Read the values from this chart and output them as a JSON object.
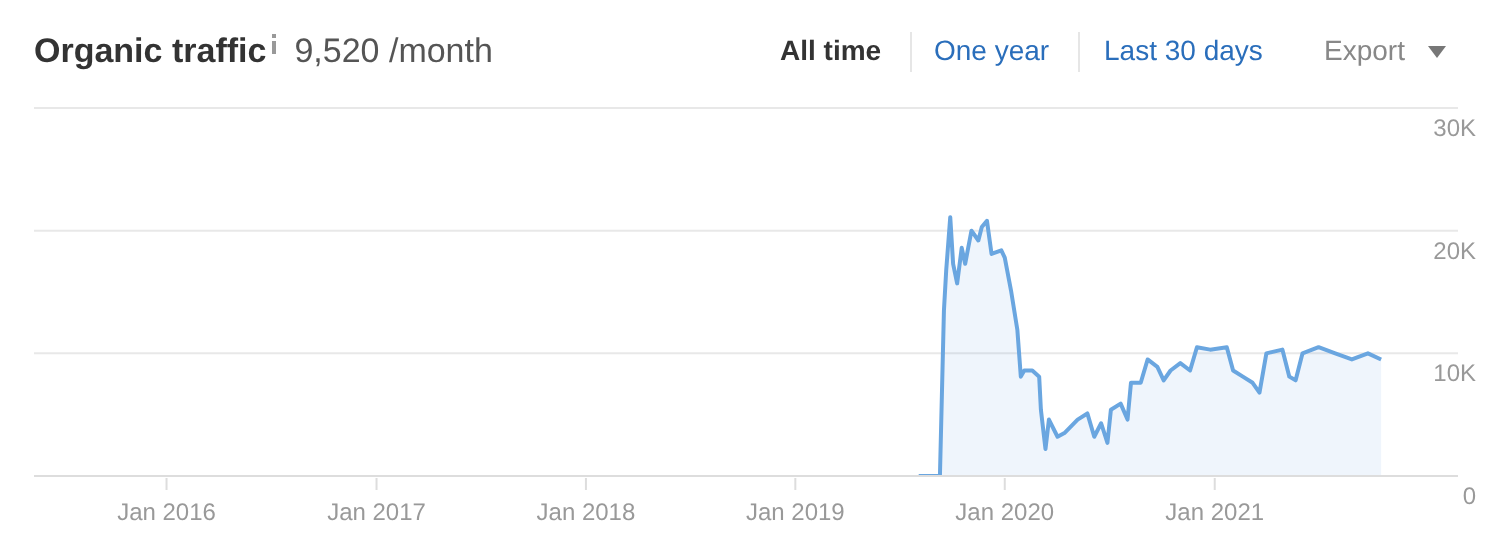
{
  "chart_data": {
    "type": "area",
    "title": "Organic traffic",
    "subtitle": "9,520 /month",
    "annotations": [
      "All time",
      "One year",
      "Last 30 days",
      "Export"
    ],
    "x": [
      "2019-08-04",
      "2019-09-10",
      "2019-09-17",
      "2019-09-21",
      "2019-09-28",
      "2019-10-03",
      "2019-10-10",
      "2019-10-18",
      "2019-10-24",
      "2019-11-04",
      "2019-11-16",
      "2019-11-22",
      "2019-12-01",
      "2019-12-09",
      "2019-12-26",
      "2020-01-01",
      "2020-01-12",
      "2020-01-23",
      "2020-01-29",
      "2020-02-04",
      "2020-02-18",
      "2020-03-01",
      "2020-03-04",
      "2020-03-12",
      "2020-03-18",
      "2020-04-02",
      "2020-04-14",
      "2020-05-07",
      "2020-05-24",
      "2020-06-05",
      "2020-06-17",
      "2020-06-28",
      "2020-07-04",
      "2020-07-21",
      "2020-08-02",
      "2020-08-08",
      "2020-08-25",
      "2020-09-06",
      "2020-09-23",
      "2020-10-04",
      "2020-10-16",
      "2020-11-02",
      "2020-11-19",
      "2020-12-01",
      "2020-12-24",
      "2021-01-22",
      "2021-02-02",
      "2021-02-19",
      "2021-03-08",
      "2021-03-20",
      "2021-04-01",
      "2021-04-29",
      "2021-05-11",
      "2021-05-22",
      "2021-06-03",
      "2021-07-01",
      "2021-07-30",
      "2021-08-28",
      "2021-09-25",
      "2021-10-18"
    ],
    "series": [
      {
        "color": "#6aa6e0",
        "values": [
          0,
          0,
          13500,
          16800,
          21100,
          17300,
          15700,
          18600,
          17300,
          20000,
          19200,
          20300,
          20800,
          18100,
          18400,
          17800,
          15100,
          11900,
          8100,
          8600,
          8600,
          8100,
          5400,
          2200,
          4600,
          3200,
          3500,
          4600,
          5100,
          3200,
          4300,
          2700,
          5400,
          5900,
          4600,
          7600,
          7600,
          9500,
          8900,
          7800,
          8600,
          9200,
          8600,
          10500,
          10300,
          10500,
          8600,
          8100,
          7600,
          6800,
          10000,
          10300,
          8100,
          7800,
          10000,
          10500,
          10000,
          9500,
          10000,
          9500
        ]
      }
    ],
    "xlim": [
      "2015-05-15",
      "2022-03-01"
    ],
    "xticks": [
      {
        "value": "2016-01",
        "label": "Jan 2016"
      },
      {
        "value": "2017-01",
        "label": "Jan 2017"
      },
      {
        "value": "2018-01",
        "label": "Jan 2018"
      },
      {
        "value": "2019-01",
        "label": "Jan 2019"
      },
      {
        "value": "2020-01",
        "label": "Jan 2020"
      },
      {
        "value": "2021-01",
        "label": "Jan 2021"
      }
    ],
    "ylim": [
      0,
      30000
    ],
    "yticks": [
      {
        "value": 0,
        "label": "0"
      },
      {
        "value": 10000,
        "label": "10K"
      },
      {
        "value": 20000,
        "label": "20K"
      },
      {
        "value": 30000,
        "label": "30K"
      }
    ],
    "grid": "y"
  }
}
